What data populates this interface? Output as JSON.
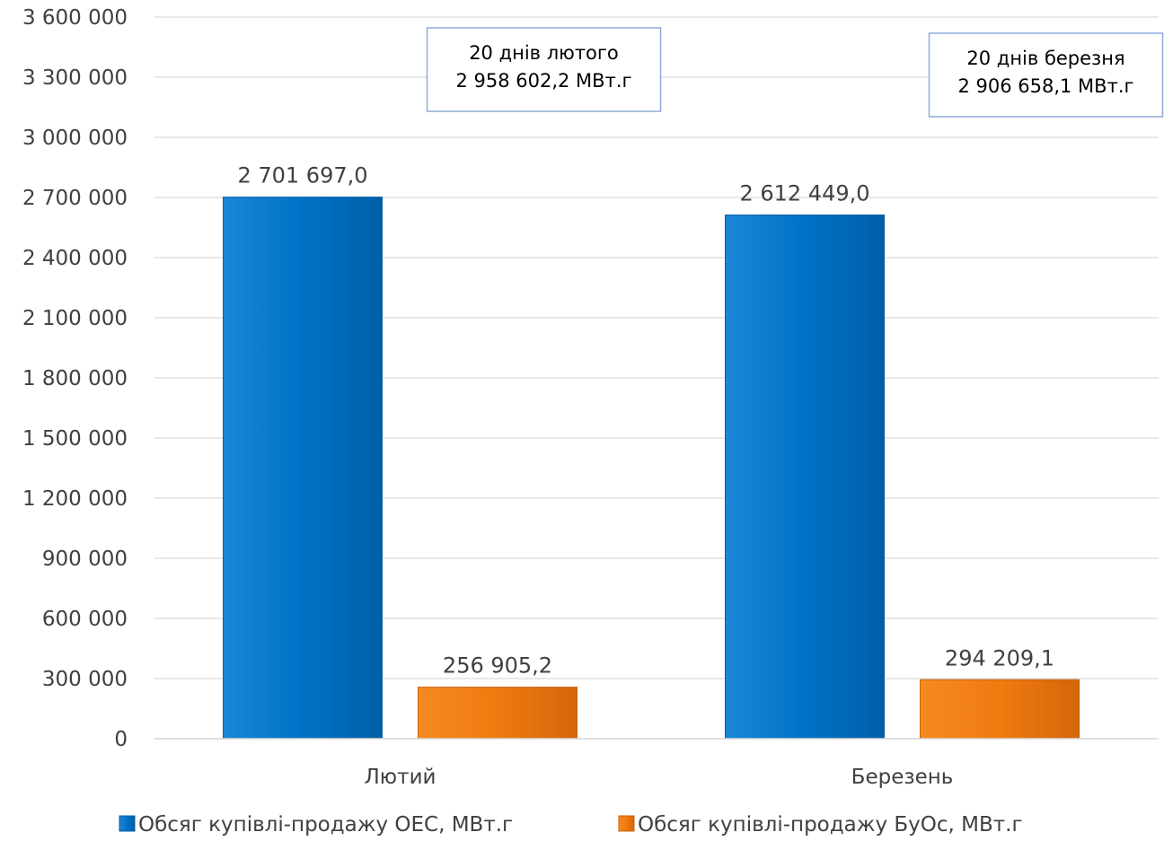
{
  "chart_data": {
    "type": "bar",
    "categories": [
      "Лютий",
      "Березень"
    ],
    "series": [
      {
        "name": "Обсяг купівлі-продажу ОЕС, МВт.г",
        "values": [
          2701697.0,
          2612449.0
        ],
        "labels": [
          "2 701 697,0",
          "2 612 449,0"
        ],
        "color": "#0070C0"
      },
      {
        "name": "Обсяг купівлі-продажу БуОс, МВт.г",
        "values": [
          256905.2,
          294209.1
        ],
        "labels": [
          "256 905,2",
          "294 209,1"
        ],
        "color": "#F07A10"
      }
    ],
    "ylim": [
      0,
      3600000
    ],
    "yticks": [
      0,
      300000,
      600000,
      900000,
      1200000,
      1500000,
      1800000,
      2100000,
      2400000,
      2700000,
      3000000,
      3300000,
      3600000
    ],
    "ytick_labels": [
      "0",
      "300 000",
      "600 000",
      "900 000",
      "1 200 000",
      "1 500 000",
      "1 800 000",
      "2 100 000",
      "2 400 000",
      "2 700 000",
      "3 000 000",
      "3 300 000",
      "3 600 000"
    ],
    "grid": true,
    "legend_position": "bottom",
    "annotations": [
      {
        "category": "Лютий",
        "lines": [
          "20 днів лютого",
          "2 958 602,2 МВт.г"
        ]
      },
      {
        "category": "Березень",
        "lines": [
          "20 днів березня",
          "2 906 658,1 МВт.г"
        ]
      }
    ]
  }
}
